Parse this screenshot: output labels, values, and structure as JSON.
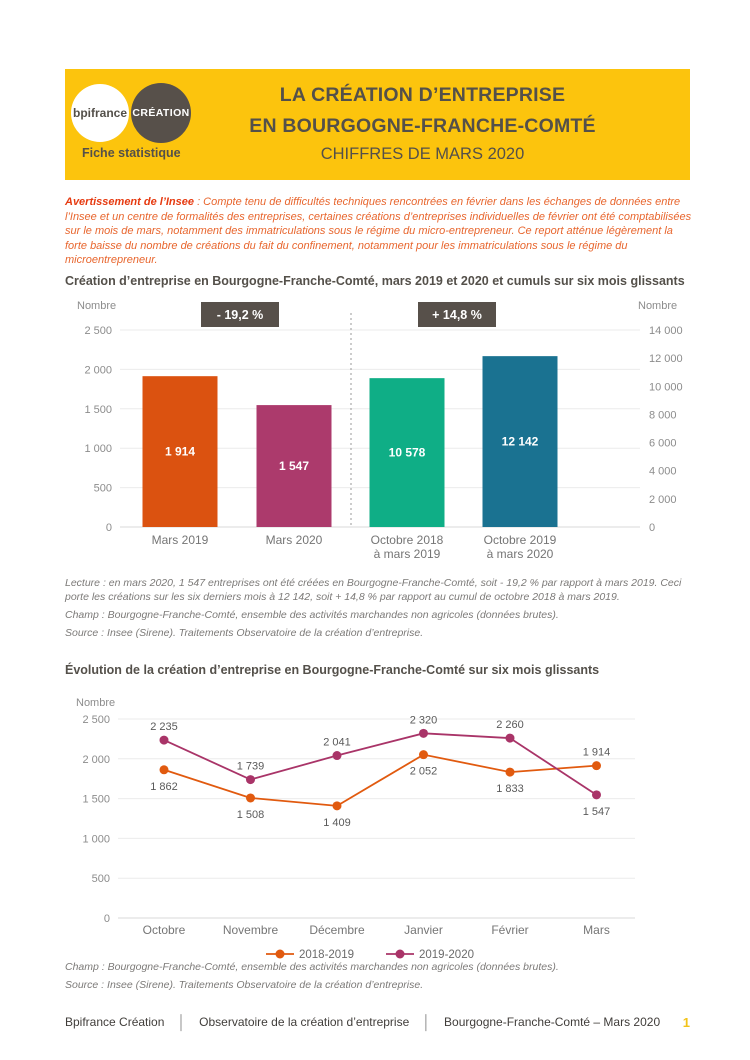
{
  "header": {
    "logo_bpifrance": "bpifrance",
    "logo_creation": "CRÉATION",
    "tagline": "Fiche statistique",
    "title_line1": "LA CRÉATION D’ENTREPRISE",
    "title_line2": "EN BOURGOGNE-FRANCHE-COMTÉ",
    "subtitle": "CHIFFRES DE MARS 2020",
    "background_color": "#FCC40D"
  },
  "notice": {
    "lead": "Avertissement de l’Insee",
    "body": " : Compte tenu de difficultés techniques rencontrées en février dans les échanges de données entre l’Insee et un centre de formalités des entreprises, certaines créations d’entreprises individuelles de février ont été comptabilisées sur le mois de mars, notamment des immatriculations sous le régime du micro-entrepreneur. Ce report atténue légèrement la forte baisse du nombre de créations du fait du confinement, notamment pour les immatriculations sous le régime du microentrepreneur."
  },
  "bar_section": {
    "title": "Création d’entreprise en Bourgogne-Franche-Comté, mars 2019 et 2020 et cumuls sur six mois glissants",
    "axis_label_left": "Nombre",
    "axis_label_right": "Nombre",
    "badge_left": "- 19,2 %",
    "badge_right": "+ 14,8 %",
    "note_lecture": "Lecture : en mars 2020, 1 547 entreprises ont été créées en Bourgogne-Franche-Comté, soit - 19,2 % par rapport à mars 2019. Ceci porte les créations sur les six derniers mois à 12 142, soit + 14,8 % par rapport au cumul de octobre 2018 à mars 2019.",
    "note_champ": "Champ : Bourgogne-Franche-Comté, ensemble des activités marchandes non agricoles (données brutes).",
    "note_source": "Source : Insee (Sirene). Traitements Observatoire de la création d’entreprise."
  },
  "line_section": {
    "title": "Évolution de la création d’entreprise en Bourgogne-Franche-Comté sur six mois glissants",
    "axis_label": "Nombre",
    "note_champ": "Champ : Bourgogne-Franche-Comté, ensemble des activités marchandes non agricoles (données brutes).",
    "note_source": "Source : Insee (Sirene). Traitements Observatoire de la création d’entreprise."
  },
  "footer": {
    "items": [
      "Bpifrance Création",
      "Observatoire de la création d’entreprise",
      "Bourgogne-Franche-Comté – Mars 2020"
    ],
    "page_number": "1"
  },
  "chart_data": [
    {
      "type": "bar",
      "title": "Création d’entreprise en Bourgogne-Franche-Comté, mars 2019 et 2020 et cumuls sur six mois glissants",
      "categories": [
        "Mars 2019",
        "Mars 2020",
        "Octobre 2018\nà mars 2019",
        "Octobre 2019\nà mars 2020"
      ],
      "values": [
        1914,
        1547,
        10578,
        12142
      ],
      "value_labels": [
        "1 914",
        "1 547",
        "10 578",
        "12 142"
      ],
      "bar_colors": [
        "#DB5210",
        "#AC3A6C",
        "#0FAE86",
        "#1A7291"
      ],
      "axis_for_bar": [
        "left",
        "left",
        "right",
        "right"
      ],
      "annotations": [
        {
          "text": "- 19,2 %",
          "applies_to": "Mars 2020 vs Mars 2019"
        },
        {
          "text": "+ 14,8 %",
          "applies_to": "Octobre 2019 à mars 2020 vs Octobre 2018 à mars 2019"
        }
      ],
      "left_axis": {
        "label": "Nombre",
        "min": 0,
        "max": 2500,
        "step": 500,
        "ticks": [
          "0",
          "500",
          "1 000",
          "1 500",
          "2 000",
          "2 500"
        ]
      },
      "right_axis": {
        "label": "Nombre",
        "min": 0,
        "max": 14000,
        "step": 2000,
        "ticks": [
          "0",
          "2 000",
          "4 000",
          "6 000",
          "8 000",
          "10 000",
          "12 000",
          "14 000"
        ]
      },
      "grid": true,
      "separator_between_groups": true
    },
    {
      "type": "line",
      "title": "Évolution de la création d’entreprise en Bourgogne-Franche-Comté sur six mois glissants",
      "categories": [
        "Octobre",
        "Novembre",
        "Décembre",
        "Janvier",
        "Février",
        "Mars"
      ],
      "series": [
        {
          "name": "2018-2019",
          "color": "#E15A0F",
          "values": [
            1862,
            1508,
            1409,
            2052,
            1833,
            1914
          ],
          "labels": [
            "1 862",
            "1 508",
            "1 409",
            "2 052",
            "1 833",
            "1 914"
          ],
          "label_side": [
            "below",
            "below",
            "below",
            "below",
            "below",
            "above"
          ]
        },
        {
          "name": "2019-2020",
          "color": "#A93468",
          "values": [
            2235,
            1739,
            2041,
            2320,
            2260,
            1547
          ],
          "labels": [
            "2 235",
            "1 739",
            "2 041",
            "2 320",
            "2 260",
            "1 547"
          ],
          "label_side": [
            "above",
            "above",
            "above",
            "above",
            "above",
            "below"
          ]
        }
      ],
      "ylabel": "Nombre",
      "ylim": [
        0,
        2500
      ],
      "ystep": 500,
      "yticks": [
        "0",
        "500",
        "1 000",
        "1 500",
        "2 000",
        "2 500"
      ],
      "grid": true,
      "legend_position": "bottom"
    }
  ]
}
